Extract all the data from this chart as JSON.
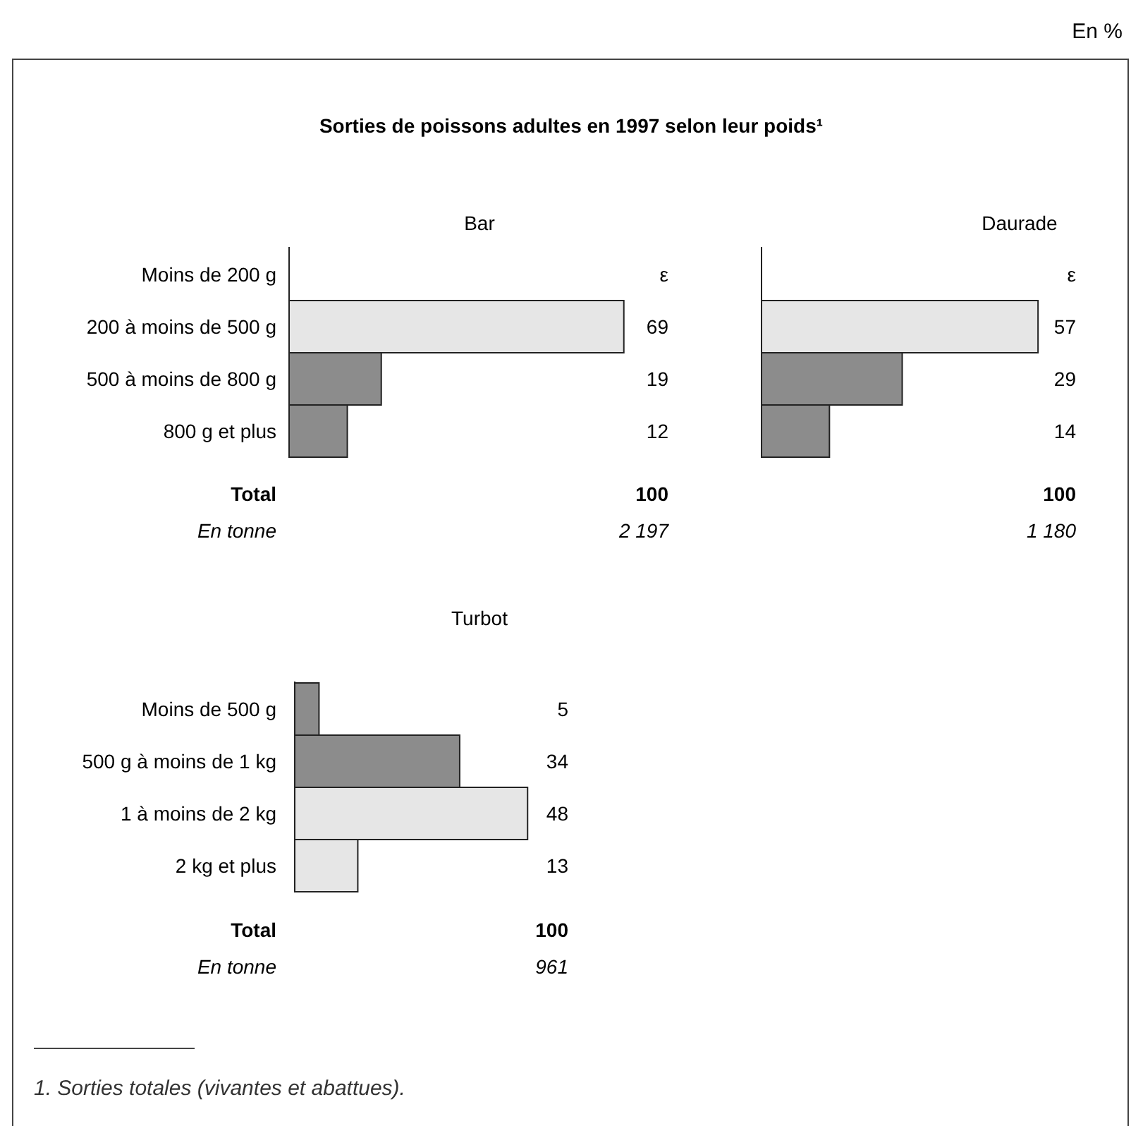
{
  "chart_data": [
    {
      "type": "other",
      "title": "Sorties de poissons adultes en 1997 selon leur poids¹",
      "annotations": [
        "En %",
        "1. Sorties totales (vivantes et abattues)."
      ]
    },
    {
      "type": "bar",
      "orientation": "horizontal",
      "title": "Bar",
      "categories": [
        "Moins de 200 g",
        "200 à moins de 500 g",
        "500 à moins de 800 g",
        "800 g et plus"
      ],
      "values": [
        null,
        69,
        19,
        12
      ],
      "value_labels": [
        "ε",
        "69",
        "19",
        "12"
      ],
      "colors": [
        null,
        "#e6e6e6",
        "#8c8c8c",
        "#8c8c8c"
      ],
      "annotations": [
        "Total",
        "En tonne",
        "100",
        "2 197"
      ]
    },
    {
      "type": "bar",
      "orientation": "horizontal",
      "title": "Daurade",
      "categories": [
        null,
        null,
        null,
        null
      ],
      "values": [
        null,
        57,
        29,
        14
      ],
      "value_labels": [
        "ε",
        "57",
        "29",
        "14"
      ],
      "colors": [
        null,
        "#e6e6e6",
        "#8c8c8c",
        "#8c8c8c"
      ],
      "annotations": [
        "100",
        "1 180"
      ]
    },
    {
      "type": "bar",
      "orientation": "horizontal",
      "title": "Turbot",
      "categories": [
        "Moins de 500 g",
        "500 g à moins de 1 kg",
        "1 à moins de 2 kg",
        "2 kg et plus"
      ],
      "values": [
        5,
        34,
        48,
        13
      ],
      "value_labels": [
        "5",
        "34",
        "48",
        "13"
      ],
      "colors": [
        "#8c8c8c",
        "#8c8c8c",
        "#e6e6e6",
        "#e6e6e6"
      ],
      "annotations": [
        "Total",
        "En tonne",
        "100",
        "961"
      ]
    }
  ]
}
